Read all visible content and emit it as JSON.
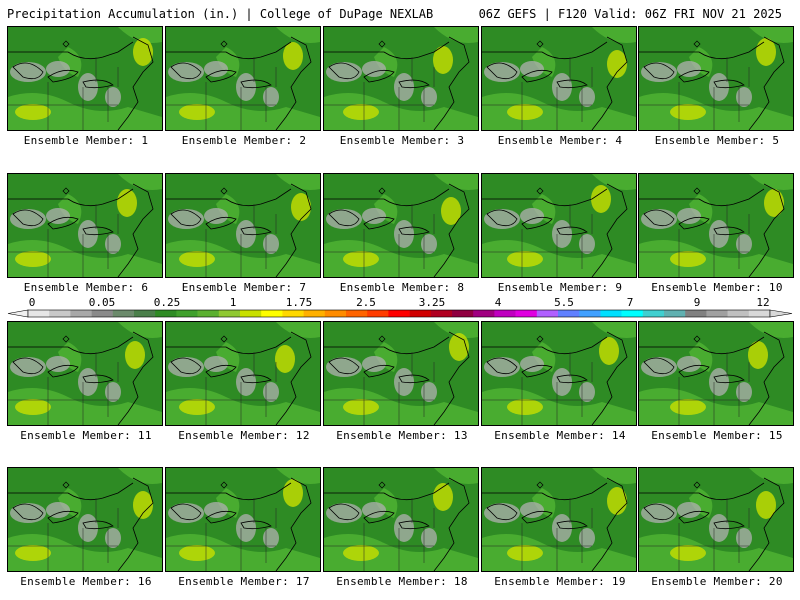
{
  "header": {
    "title": "Precipitation Accumulation (in.) | College of DuPage NEXLAB",
    "valid": "06Z GEFS | F120 Valid: 06Z FRI NOV 21 2025"
  },
  "members": [
    {
      "label": "Ensemble Member: 1"
    },
    {
      "label": "Ensemble Member: 2"
    },
    {
      "label": "Ensemble Member: 3"
    },
    {
      "label": "Ensemble Member: 4"
    },
    {
      "label": "Ensemble Member: 5"
    },
    {
      "label": "Ensemble Member: 6"
    },
    {
      "label": "Ensemble Member: 7"
    },
    {
      "label": "Ensemble Member: 8"
    },
    {
      "label": "Ensemble Member: 9"
    },
    {
      "label": "Ensemble Member: 10"
    },
    {
      "label": "Ensemble Member: 11"
    },
    {
      "label": "Ensemble Member: 12"
    },
    {
      "label": "Ensemble Member: 13"
    },
    {
      "label": "Ensemble Member: 14"
    },
    {
      "label": "Ensemble Member: 15"
    },
    {
      "label": "Ensemble Member: 16"
    },
    {
      "label": "Ensemble Member: 17"
    },
    {
      "label": "Ensemble Member: 18"
    },
    {
      "label": "Ensemble Member: 19"
    },
    {
      "label": "Ensemble Member: 20"
    }
  ],
  "colorbar": {
    "ticks": [
      "0",
      "0.05",
      "0.25",
      "1",
      "1.75",
      "2.5",
      "3.25",
      "4",
      "5.5",
      "7",
      "9",
      "12"
    ],
    "colors": [
      "#e6e6e6",
      "#c8c8c8",
      "#a8a8a8",
      "#8a8a8a",
      "#6b8a6b",
      "#4a7f4a",
      "#2e8b24",
      "#3fa02c",
      "#5bb030",
      "#8fc832",
      "#c8e000",
      "#ffff00",
      "#ffd800",
      "#ffb000",
      "#ff8c00",
      "#ff6400",
      "#ff3c00",
      "#ff0000",
      "#d00000",
      "#b00020",
      "#900040",
      "#a00080",
      "#c000c0",
      "#e000e0",
      "#b060ff",
      "#6080ff",
      "#40a0ff",
      "#00e0ff",
      "#00ffff",
      "#40d0d0",
      "#60b0b0",
      "#808080",
      "#a0a0a0",
      "#c0c0c0",
      "#d8d8d8"
    ]
  }
}
